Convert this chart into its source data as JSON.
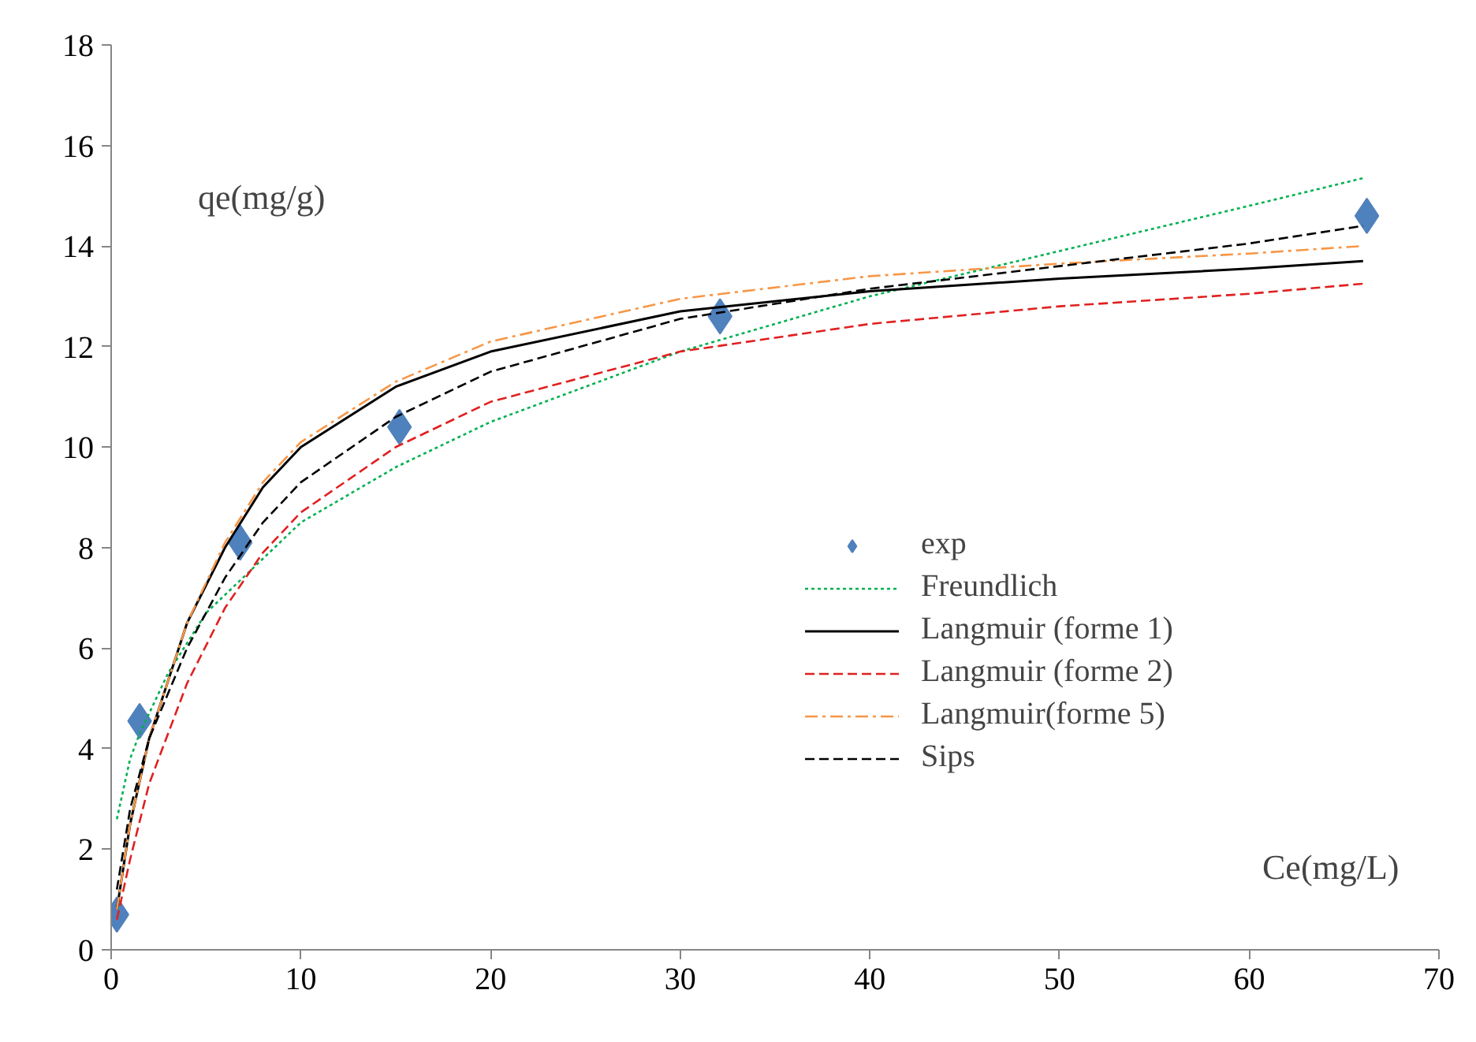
{
  "chart_data": {
    "type": "line",
    "xlabel": "Ce(mg/L)",
    "ylabel": "qe(mg/g)",
    "xlim": [
      0,
      70
    ],
    "ylim": [
      0,
      18
    ],
    "xticks": [
      0,
      10,
      20,
      30,
      40,
      50,
      60,
      70
    ],
    "yticks": [
      0,
      2,
      4,
      6,
      8,
      10,
      12,
      14,
      16,
      18
    ],
    "grid": false,
    "legend": "right",
    "series": [
      {
        "name": "exp",
        "type": "scatter",
        "marker": "diamond",
        "color": "#4f81bd",
        "x": [
          0.3,
          1.5,
          6.8,
          15.2,
          32.1,
          66.2
        ],
        "values": [
          0.7,
          4.55,
          8.1,
          10.4,
          12.6,
          14.6
        ]
      },
      {
        "name": "Freundlich",
        "line_style": "dotted",
        "color": "#00b050",
        "x": [
          0.3,
          1,
          1.5,
          3,
          5,
          10,
          15,
          20,
          30,
          40,
          50,
          60,
          66
        ],
        "values": [
          2.6,
          3.8,
          4.3,
          5.5,
          6.7,
          8.5,
          9.6,
          10.5,
          11.9,
          13.0,
          13.9,
          14.8,
          15.35
        ]
      },
      {
        "name": "Langmuir (forme 1)",
        "line_style": "solid",
        "color": "#000000",
        "x": [
          0.3,
          1,
          2,
          4,
          6,
          8,
          10,
          15,
          20,
          30,
          40,
          50,
          60,
          66
        ],
        "values": [
          0.8,
          2.5,
          4.2,
          6.5,
          8.0,
          9.2,
          10.0,
          11.2,
          11.9,
          12.7,
          13.1,
          13.35,
          13.55,
          13.7
        ]
      },
      {
        "name": "Langmuir (forme 2)",
        "line_style": "dashed",
        "color": "#e02020",
        "x": [
          0.3,
          1,
          2,
          4,
          6,
          8,
          10,
          15,
          20,
          30,
          40,
          50,
          60,
          66
        ],
        "values": [
          0.6,
          1.8,
          3.3,
          5.3,
          6.8,
          7.9,
          8.7,
          10.0,
          10.9,
          11.9,
          12.45,
          12.8,
          13.05,
          13.25
        ]
      },
      {
        "name": "Langmuir(forme 5)",
        "line_style": "dashdot",
        "color": "#f79646",
        "x": [
          0.3,
          1,
          2,
          4,
          6,
          8,
          10,
          15,
          20,
          30,
          40,
          50,
          60,
          66
        ],
        "values": [
          0.8,
          2.5,
          4.2,
          6.5,
          8.1,
          9.3,
          10.1,
          11.3,
          12.1,
          12.95,
          13.4,
          13.65,
          13.85,
          14.0
        ]
      },
      {
        "name": "Sips",
        "line_style": "dashed",
        "color": "#000000",
        "x": [
          0.3,
          1,
          2,
          4,
          6,
          8,
          10,
          15,
          20,
          30,
          40,
          50,
          60,
          66
        ],
        "values": [
          1.2,
          2.8,
          4.2,
          6.0,
          7.4,
          8.5,
          9.3,
          10.6,
          11.5,
          12.55,
          13.15,
          13.6,
          14.05,
          14.4
        ]
      }
    ]
  }
}
